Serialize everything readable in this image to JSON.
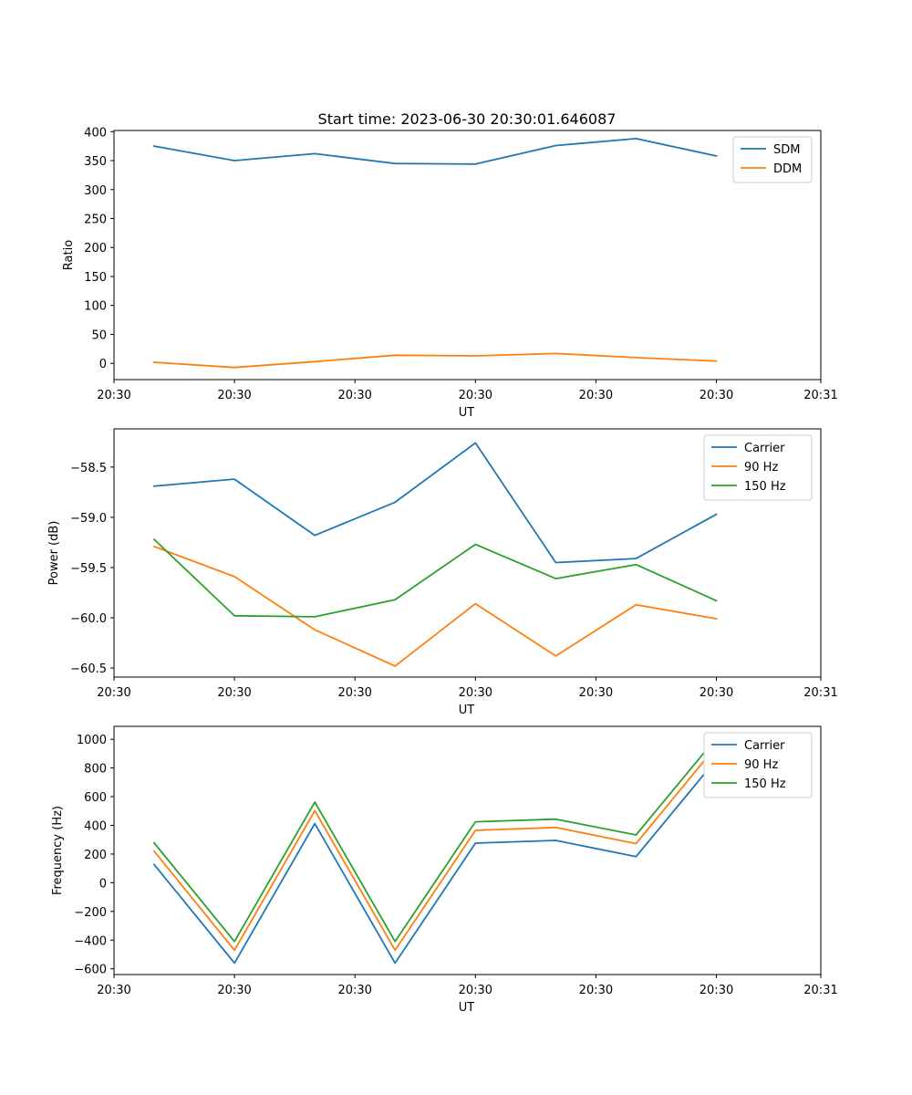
{
  "figure": {
    "title": "Start time: 2023-06-30 20:30:01.646087"
  },
  "chart_data": [
    {
      "type": "line",
      "title": "Start time: 2023-06-30 20:30:01.646087",
      "xlabel": "UT",
      "ylabel": "Ratio",
      "x": [
        1,
        2,
        3,
        4,
        5,
        6,
        7,
        8
      ],
      "xlim": [
        0.5,
        9.3
      ],
      "xticks": [
        0.5,
        2.0,
        3.5,
        5.0,
        6.5,
        8.0,
        9.3
      ],
      "xtick_labels": [
        "20:30",
        "20:30",
        "20:30",
        "20:30",
        "20:30",
        "20:30",
        "20:31"
      ],
      "ylim": [
        -28,
        402
      ],
      "yticks": [
        0,
        50,
        100,
        150,
        200,
        250,
        300,
        350,
        400
      ],
      "ytick_labels": [
        "0",
        "50",
        "100",
        "150",
        "200",
        "250",
        "300",
        "350",
        "400"
      ],
      "legend": "top-right",
      "grid": false,
      "series": [
        {
          "name": "SDM",
          "color": "#1f77b4",
          "values": [
            375,
            350,
            362,
            345,
            344,
            376,
            388,
            358
          ]
        },
        {
          "name": "DDM",
          "color": "#ff7f0e",
          "values": [
            2,
            -7,
            3,
            14,
            13,
            17,
            10,
            4
          ]
        }
      ]
    },
    {
      "type": "line",
      "title": "",
      "xlabel": "UT",
      "ylabel": "Power (dB)",
      "x": [
        1,
        2,
        3,
        4,
        5,
        6,
        7,
        8
      ],
      "xlim": [
        0.5,
        9.3
      ],
      "xticks": [
        0.5,
        2.0,
        3.5,
        5.0,
        6.5,
        8.0,
        9.3
      ],
      "xtick_labels": [
        "20:30",
        "20:30",
        "20:30",
        "20:30",
        "20:30",
        "20:30",
        "20:31"
      ],
      "ylim": [
        -60.59,
        -58.12
      ],
      "yticks": [
        -60.5,
        -60.0,
        -59.5,
        -59.0,
        -58.5
      ],
      "ytick_labels": [
        "−60.5",
        "−60.0",
        "−59.5",
        "−59.0",
        "−58.5"
      ],
      "legend": "top-right",
      "grid": false,
      "series": [
        {
          "name": "Carrier",
          "color": "#1f77b4",
          "values": [
            -58.69,
            -58.62,
            -59.18,
            -58.85,
            -58.26,
            -59.45,
            -59.41,
            -58.97
          ]
        },
        {
          "name": "90 Hz",
          "color": "#ff7f0e",
          "values": [
            -59.29,
            -59.59,
            -60.12,
            -60.48,
            -59.86,
            -60.38,
            -59.87,
            -60.01
          ]
        },
        {
          "name": "150 Hz",
          "color": "#2ca02c",
          "values": [
            -59.22,
            -59.98,
            -59.99,
            -59.82,
            -59.27,
            -59.61,
            -59.47,
            -59.83
          ]
        }
      ]
    },
    {
      "type": "line",
      "title": "",
      "xlabel": "UT",
      "ylabel": "Frequency (Hz)",
      "x": [
        1,
        2,
        3,
        4,
        5,
        6,
        7,
        8
      ],
      "xlim": [
        0.5,
        9.3
      ],
      "xticks": [
        0.5,
        2.0,
        3.5,
        5.0,
        6.5,
        8.0,
        9.3
      ],
      "xtick_labels": [
        "20:30",
        "20:30",
        "20:30",
        "20:30",
        "20:30",
        "20:30",
        "20:31"
      ],
      "ylim": [
        -640,
        1090
      ],
      "yticks": [
        -600,
        -400,
        -200,
        0,
        200,
        400,
        600,
        800,
        1000
      ],
      "ytick_labels": [
        "−600",
        "−400",
        "−200",
        "0",
        "200",
        "400",
        "600",
        "800",
        "1000"
      ],
      "legend": "top-right",
      "grid": false,
      "series": [
        {
          "name": "Carrier",
          "color": "#1f77b4",
          "values": [
            127,
            -560,
            412,
            -560,
            276,
            295,
            182,
            860
          ]
        },
        {
          "name": "90 Hz",
          "color": "#ff7f0e",
          "values": [
            220,
            -470,
            502,
            -470,
            365,
            385,
            273,
            953
          ]
        },
        {
          "name": "150 Hz",
          "color": "#2ca02c",
          "values": [
            278,
            -410,
            562,
            -410,
            425,
            443,
            333,
            1010
          ]
        }
      ]
    }
  ]
}
